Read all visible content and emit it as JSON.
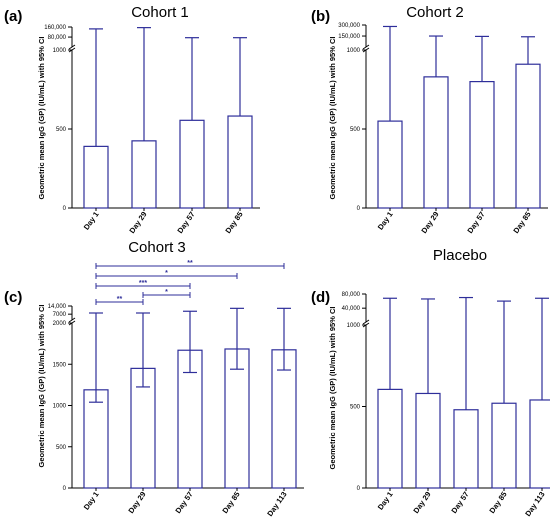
{
  "chart_data": [
    {
      "type": "bar",
      "panel": "(a)",
      "title": "Cohort 1",
      "ylabel": "Geometric mean IgG (GP) (IU/mL) with 95% CI",
      "categories": [
        "Day 1",
        "Day 29",
        "Day 57",
        "Day 85"
      ],
      "values": [
        390,
        425,
        555,
        582
      ],
      "ci_upper": [
        145000,
        155000,
        75000,
        75000
      ],
      "y_axis_broken": true,
      "ylim_lower": [
        0,
        1000
      ],
      "ylim_upper": [
        1000,
        160000
      ],
      "yticks_lower": [
        "0",
        "500",
        "1000"
      ],
      "yticks_upper": [
        "80,000",
        "160,000"
      ],
      "significance": []
    },
    {
      "type": "bar",
      "panel": "(b)",
      "title": "Cohort 2",
      "ylabel": "Geometric mean IgG (GP) (IU/mL) with 95% CI",
      "categories": [
        "Day 1",
        "Day 29",
        "Day 57",
        "Day 85"
      ],
      "values": [
        550,
        830,
        800,
        910
      ],
      "ci_upper": [
        280000,
        150000,
        145000,
        140000
      ],
      "y_axis_broken": true,
      "ylim_lower": [
        0,
        1000
      ],
      "ylim_upper": [
        1000,
        300000
      ],
      "yticks_lower": [
        "0",
        "500",
        "1000"
      ],
      "yticks_upper": [
        "150,000",
        "300,000"
      ],
      "significance": []
    },
    {
      "type": "bar",
      "panel": "(c)",
      "title": "Cohort 3",
      "ylabel": "Geometric mean IgG (GP) (IU/mL) with 95% CI",
      "categories": [
        "Day 1",
        "Day 29",
        "Day 57",
        "Day 85",
        "Day 113"
      ],
      "values": [
        1190,
        1450,
        1670,
        1685,
        1675
      ],
      "ci_lower": [
        1040,
        1225,
        1400,
        1440,
        1430
      ],
      "ci_upper": [
        8000,
        8000,
        9500,
        12000,
        12000
      ],
      "y_axis_broken": true,
      "ylim_lower": [
        0,
        2000
      ],
      "ylim_upper": [
        2000,
        14000
      ],
      "yticks_lower": [
        "0",
        "500",
        "1000",
        "1500",
        "2000"
      ],
      "yticks_upper": [
        "7000",
        "14,000"
      ],
      "significance": [
        {
          "from": "Day 1",
          "to": "Day 113",
          "label": "**"
        },
        {
          "from": "Day 1",
          "to": "Day 85",
          "label": "*"
        },
        {
          "from": "Day 1",
          "to": "Day 57",
          "label": "***"
        },
        {
          "from": "Day 29",
          "to": "Day 57",
          "label": "*"
        },
        {
          "from": "Day 1",
          "to": "Day 29",
          "label": "**"
        }
      ]
    },
    {
      "type": "bar",
      "panel": "(d)",
      "title": "Placebo",
      "ylabel": "Geometric mean IgG (GP) (IU/mL) with 95% CI",
      "categories": [
        "Day 1",
        "Day 29",
        "Day 57",
        "Day 85",
        "Day 113"
      ],
      "values": [
        605,
        580,
        480,
        520,
        540
      ],
      "ci_upper": [
        68000,
        66000,
        70000,
        60000,
        68000
      ],
      "y_axis_broken": true,
      "ylim_lower": [
        0,
        1000
      ],
      "ylim_upper": [
        1000,
        80000
      ],
      "yticks_lower": [
        "0",
        "500",
        "1000"
      ],
      "yticks_upper": [
        "40,000",
        "80,000"
      ],
      "significance": []
    }
  ],
  "colors": {
    "bar_stroke": "#2e2e9a",
    "axis": "#000000"
  }
}
